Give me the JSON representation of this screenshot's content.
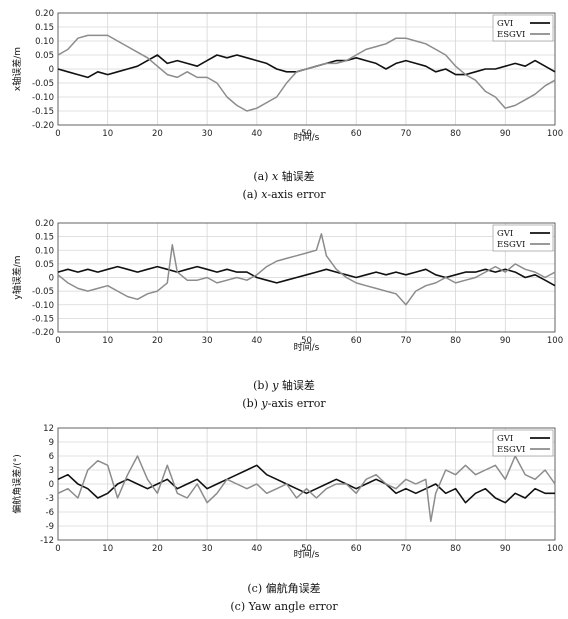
{
  "chart_data": [
    {
      "type": "line",
      "xlabel": "时间/s",
      "ylabel": "x轴误差/m",
      "xlim": [
        0,
        100
      ],
      "ylim": [
        -0.2,
        0.2
      ],
      "xticks": [
        "0",
        "10",
        "20",
        "30",
        "40",
        "50",
        "60",
        "70",
        "80",
        "90",
        "100"
      ],
      "yticks": [
        "0.20",
        "0.15",
        "0.10",
        "0.05",
        "0",
        "-0.05",
        "-0.10",
        "-0.15",
        "-0.20"
      ],
      "grid": true,
      "legend_position": "top-right",
      "caption_cn": {
        "prefix": "(a) ",
        "var": "x",
        "suffix": " 轴误差"
      },
      "caption_en": {
        "prefix": "(a) ",
        "var": "x",
        "suffix": "-axis error"
      },
      "series": [
        {
          "name": "GVI",
          "color": "#111111",
          "x": [
            0,
            2,
            4,
            6,
            8,
            10,
            12,
            14,
            16,
            18,
            20,
            22,
            24,
            26,
            28,
            30,
            32,
            34,
            36,
            38,
            40,
            42,
            44,
            46,
            48,
            50,
            52,
            54,
            56,
            58,
            60,
            62,
            64,
            66,
            68,
            70,
            72,
            74,
            76,
            78,
            80,
            82,
            84,
            86,
            88,
            90,
            92,
            94,
            96,
            98,
            100
          ],
          "y": [
            0.0,
            -0.01,
            -0.02,
            -0.03,
            -0.01,
            -0.02,
            -0.01,
            0.0,
            0.01,
            0.03,
            0.05,
            0.02,
            0.03,
            0.02,
            0.01,
            0.03,
            0.05,
            0.04,
            0.05,
            0.04,
            0.03,
            0.02,
            0.0,
            -0.01,
            -0.01,
            0.0,
            0.01,
            0.02,
            0.03,
            0.03,
            0.04,
            0.03,
            0.02,
            0.0,
            0.02,
            0.03,
            0.02,
            0.01,
            -0.01,
            0.0,
            -0.02,
            -0.02,
            -0.01,
            0.0,
            0.0,
            0.01,
            0.02,
            0.01,
            0.03,
            0.01,
            -0.01
          ]
        },
        {
          "name": "ESGVI",
          "color": "#8c8c8c",
          "x": [
            0,
            2,
            4,
            6,
            8,
            10,
            12,
            14,
            16,
            18,
            20,
            22,
            24,
            26,
            28,
            30,
            32,
            34,
            36,
            38,
            40,
            42,
            44,
            46,
            48,
            50,
            52,
            54,
            56,
            58,
            60,
            62,
            64,
            66,
            68,
            70,
            72,
            74,
            76,
            78,
            80,
            82,
            84,
            86,
            88,
            90,
            92,
            94,
            96,
            98,
            100
          ],
          "y": [
            0.05,
            0.07,
            0.11,
            0.12,
            0.12,
            0.12,
            0.1,
            0.08,
            0.06,
            0.04,
            0.01,
            -0.02,
            -0.03,
            -0.01,
            -0.03,
            -0.03,
            -0.05,
            -0.1,
            -0.13,
            -0.15,
            -0.14,
            -0.12,
            -0.1,
            -0.05,
            -0.01,
            0.0,
            0.01,
            0.02,
            0.02,
            0.03,
            0.05,
            0.07,
            0.08,
            0.09,
            0.11,
            0.11,
            0.1,
            0.09,
            0.07,
            0.05,
            0.01,
            -0.02,
            -0.04,
            -0.08,
            -0.1,
            -0.14,
            -0.13,
            -0.11,
            -0.09,
            -0.06,
            -0.04
          ]
        }
      ]
    },
    {
      "type": "line",
      "xlabel": "时间/s",
      "ylabel": "y轴误差/m",
      "xlim": [
        0,
        100
      ],
      "ylim": [
        -0.2,
        0.2
      ],
      "xticks": [
        "0",
        "10",
        "20",
        "30",
        "40",
        "50",
        "60",
        "70",
        "80",
        "90",
        "100"
      ],
      "yticks": [
        "0.20",
        "0.15",
        "0.10",
        "0.05",
        "0",
        "-0.05",
        "-0.10",
        "-0.15",
        "-0.20"
      ],
      "grid": true,
      "legend_position": "top-right",
      "caption_cn": {
        "prefix": "(b) ",
        "var": "y",
        "suffix": " 轴误差"
      },
      "caption_en": {
        "prefix": "(b) ",
        "var": "y",
        "suffix": "-axis error"
      },
      "series": [
        {
          "name": "GVI",
          "color": "#111111",
          "x": [
            0,
            2,
            4,
            6,
            8,
            10,
            12,
            14,
            16,
            18,
            20,
            22,
            24,
            26,
            28,
            30,
            32,
            34,
            36,
            38,
            40,
            42,
            44,
            46,
            48,
            50,
            52,
            54,
            56,
            58,
            60,
            62,
            64,
            66,
            68,
            70,
            72,
            74,
            76,
            78,
            80,
            82,
            84,
            86,
            88,
            90,
            92,
            94,
            96,
            98,
            100
          ],
          "y": [
            0.02,
            0.03,
            0.02,
            0.03,
            0.02,
            0.03,
            0.04,
            0.03,
            0.02,
            0.03,
            0.04,
            0.03,
            0.02,
            0.03,
            0.04,
            0.03,
            0.02,
            0.03,
            0.02,
            0.02,
            0.0,
            -0.01,
            -0.02,
            -0.01,
            0.0,
            0.01,
            0.02,
            0.03,
            0.02,
            0.01,
            0.0,
            0.01,
            0.02,
            0.01,
            0.02,
            0.01,
            0.02,
            0.03,
            0.01,
            0.0,
            0.01,
            0.02,
            0.02,
            0.03,
            0.02,
            0.03,
            0.02,
            0.0,
            0.01,
            -0.01,
            -0.03
          ]
        },
        {
          "name": "ESGVI",
          "color": "#8c8c8c",
          "x": [
            0,
            2,
            4,
            6,
            8,
            10,
            12,
            14,
            16,
            18,
            20,
            22,
            23,
            24,
            26,
            28,
            30,
            32,
            34,
            36,
            38,
            40,
            42,
            44,
            46,
            48,
            50,
            52,
            53,
            54,
            56,
            58,
            60,
            62,
            64,
            66,
            68,
            70,
            72,
            74,
            76,
            78,
            80,
            82,
            84,
            86,
            88,
            90,
            92,
            94,
            96,
            98,
            100
          ],
          "y": [
            0.01,
            -0.02,
            -0.04,
            -0.05,
            -0.04,
            -0.03,
            -0.05,
            -0.07,
            -0.08,
            -0.06,
            -0.05,
            -0.02,
            0.12,
            0.02,
            -0.01,
            -0.01,
            0.0,
            -0.02,
            -0.01,
            0.0,
            -0.01,
            0.01,
            0.04,
            0.06,
            0.07,
            0.08,
            0.09,
            0.1,
            0.16,
            0.08,
            0.03,
            0.0,
            -0.02,
            -0.03,
            -0.04,
            -0.05,
            -0.06,
            -0.1,
            -0.05,
            -0.03,
            -0.02,
            0.0,
            -0.02,
            -0.01,
            0.0,
            0.02,
            0.04,
            0.02,
            0.05,
            0.03,
            0.02,
            0.0,
            0.02
          ]
        }
      ]
    },
    {
      "type": "line",
      "xlabel": "时间/s",
      "ylabel": "偏航角误差/(°)",
      "xlim": [
        0,
        100
      ],
      "ylim": [
        -12,
        12
      ],
      "xticks": [
        "0",
        "10",
        "20",
        "30",
        "40",
        "50",
        "60",
        "70",
        "80",
        "90",
        "100"
      ],
      "yticks": [
        "12",
        "9",
        "6",
        "3",
        "0",
        "-3",
        "-6",
        "-9",
        "-12"
      ],
      "grid": true,
      "legend_position": "top-right",
      "caption_cn": {
        "prefix": "(c) ",
        "var": "",
        "suffix": "偏航角误差"
      },
      "caption_en": {
        "prefix": "(c) ",
        "var": "",
        "suffix": "Yaw angle error"
      },
      "series": [
        {
          "name": "GVI",
          "color": "#111111",
          "x": [
            0,
            2,
            4,
            6,
            8,
            10,
            12,
            14,
            16,
            18,
            20,
            22,
            24,
            26,
            28,
            30,
            32,
            34,
            36,
            38,
            40,
            42,
            44,
            46,
            48,
            50,
            52,
            54,
            56,
            58,
            60,
            62,
            64,
            66,
            68,
            70,
            72,
            74,
            76,
            78,
            80,
            82,
            84,
            86,
            88,
            90,
            92,
            94,
            96,
            98,
            100
          ],
          "y": [
            1,
            2,
            0,
            -1,
            -3,
            -2,
            0,
            1,
            0,
            -1,
            0,
            1,
            -1,
            0,
            1,
            -1,
            0,
            1,
            2,
            3,
            4,
            2,
            1,
            0,
            -1,
            -2,
            -1,
            0,
            1,
            0,
            -1,
            0,
            1,
            0,
            -2,
            -1,
            -2,
            -1,
            0,
            -2,
            -1,
            -4,
            -2,
            -1,
            -3,
            -4,
            -2,
            -3,
            -1,
            -2,
            -2
          ]
        },
        {
          "name": "ESGVI",
          "color": "#8c8c8c",
          "x": [
            0,
            2,
            4,
            6,
            8,
            10,
            12,
            14,
            16,
            18,
            20,
            22,
            24,
            26,
            28,
            30,
            32,
            34,
            36,
            38,
            40,
            42,
            44,
            46,
            48,
            50,
            52,
            54,
            56,
            58,
            60,
            62,
            64,
            66,
            68,
            70,
            72,
            74,
            75,
            76,
            78,
            80,
            82,
            84,
            86,
            88,
            90,
            92,
            94,
            96,
            98,
            100
          ],
          "y": [
            -2,
            -1,
            -3,
            3,
            5,
            4,
            -3,
            2,
            6,
            1,
            -2,
            4,
            -2,
            -3,
            0,
            -4,
            -2,
            1,
            0,
            -1,
            0,
            -2,
            -1,
            0,
            -3,
            -1,
            -3,
            -1,
            0,
            0,
            -2,
            1,
            2,
            0,
            -1,
            1,
            0,
            1,
            -8,
            -2,
            3,
            2,
            4,
            2,
            3,
            4,
            1,
            6,
            2,
            1,
            3,
            0
          ]
        }
      ]
    }
  ]
}
